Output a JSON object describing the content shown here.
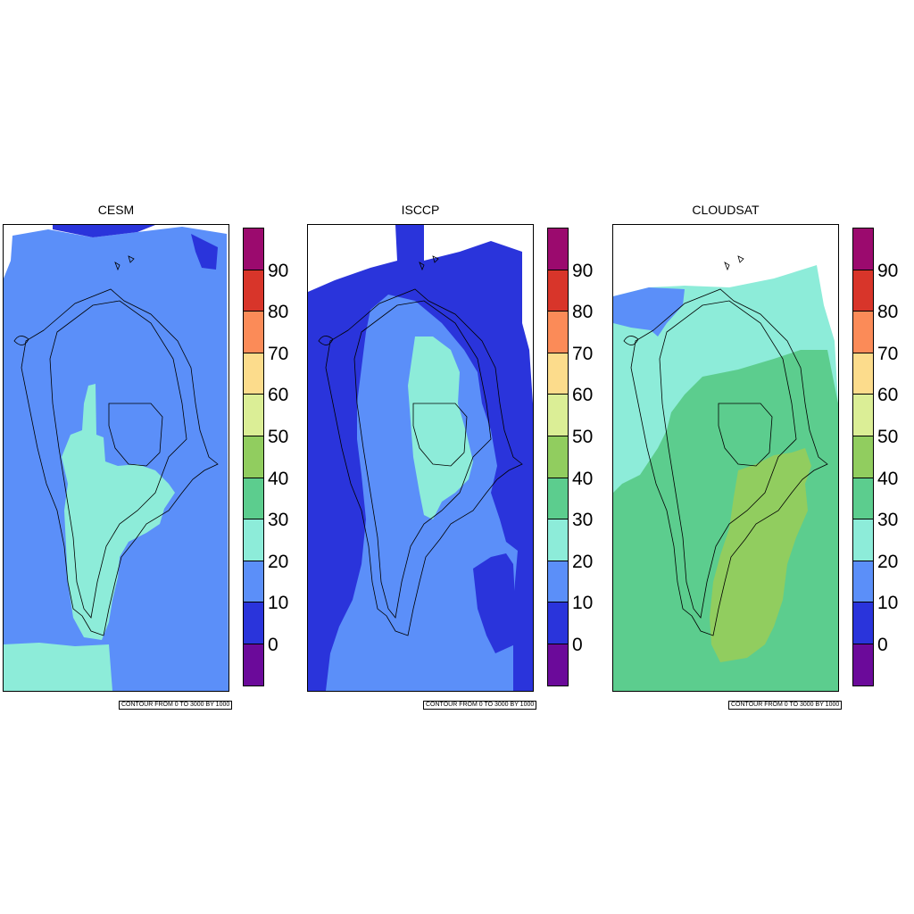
{
  "panels": [
    {
      "id": "cesm",
      "title": "CESM",
      "left": 3
    },
    {
      "id": "isccp",
      "title": "ISCCP",
      "left": 344
    },
    {
      "id": "cloudsat",
      "title": "CLOUDSAT",
      "left": 686
    }
  ],
  "colorbar": {
    "levels": [
      "90",
      "80",
      "70",
      "60",
      "50",
      "40",
      "30",
      "20",
      "10",
      "0"
    ],
    "colors": [
      "#9b0a6e",
      "#d8352a",
      "#fb8b58",
      "#fcdc8c",
      "#dbee96",
      "#91cd5f",
      "#5ccd8e",
      "#8decd9",
      "#5b8ff9",
      "#2a34db",
      "#6b0a9a"
    ]
  },
  "contour_note": "CONTOUR FROM 0 TO 3000 BY 1000",
  "fill_colors": {
    "dark_blue": "#2a34db",
    "blue": "#5b8ff9",
    "aqua": "#8decd9",
    "green": "#5ccd8e",
    "light_green": "#91cd5f"
  }
}
